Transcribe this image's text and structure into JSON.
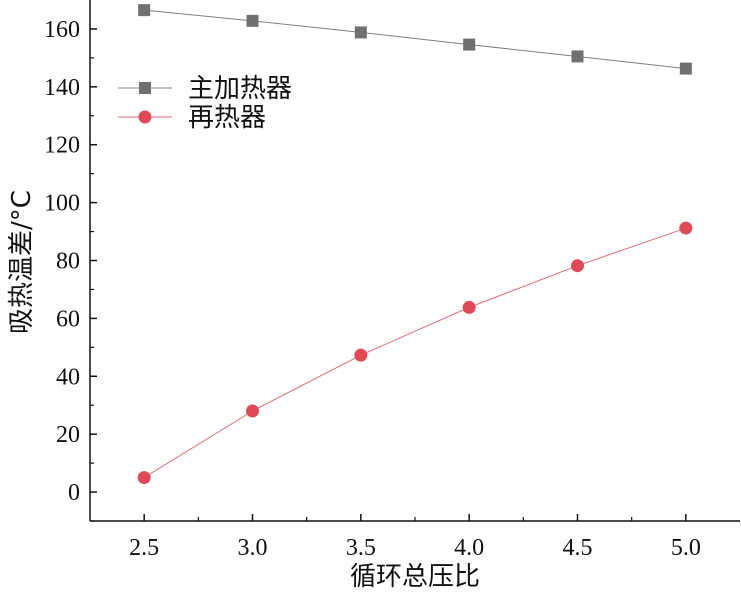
{
  "chart_data": {
    "type": "line",
    "xlabel": "循环总压比",
    "ylabel": "吸热温差/°C",
    "x": [
      2.5,
      3.0,
      3.5,
      4.0,
      4.5,
      5.0
    ],
    "x_tick_labels": [
      "2.5",
      "3.0",
      "3.5",
      "4.0",
      "4.5",
      "5.0"
    ],
    "y_tick_labels": [
      "0",
      "20",
      "40",
      "60",
      "80",
      "100",
      "120",
      "140",
      "160"
    ],
    "xlim": [
      2.25,
      5.25
    ],
    "ylim": [
      -10,
      170
    ],
    "grid": false,
    "legend_position": "top-left",
    "series": [
      {
        "name": "主加热器",
        "marker": "square",
        "color": "#707070",
        "line_color": "#808080",
        "values": [
          166.5,
          162.8,
          158.8,
          154.6,
          150.5,
          146.3
        ]
      },
      {
        "name": "再热器",
        "marker": "circle",
        "color": "#e04a56",
        "line_color": "#e66a72",
        "values": [
          5,
          28,
          47.3,
          63.8,
          78.2,
          91.2
        ]
      }
    ]
  }
}
